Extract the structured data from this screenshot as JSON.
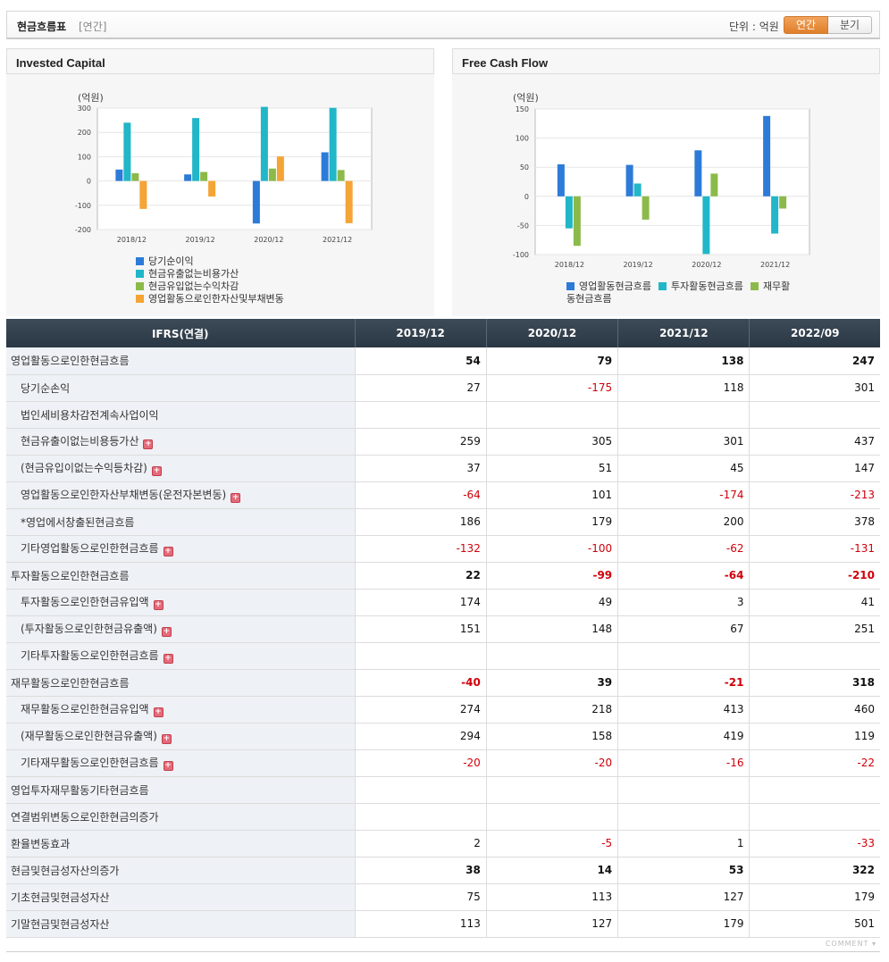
{
  "header": {
    "title": "현금흐름표",
    "period_tag": "[연간]",
    "unit_label": "단위 : 억원",
    "tab_annual": "연간",
    "tab_quarter": "분기"
  },
  "colors": {
    "blue": "#2d7bd8",
    "cyan": "#21b6c8",
    "green": "#8cba4a",
    "orange": "#f4a535",
    "negative": "#d0000a"
  },
  "panels": {
    "left_title": "Invested Capital",
    "right_title": "Free Cash Flow"
  },
  "chart_data": [
    {
      "type": "bar",
      "title": "Invested Capital",
      "ylabel": "(억원)",
      "categories": [
        "2018/12",
        "2019/12",
        "2020/12",
        "2021/12"
      ],
      "ylim": [
        -200,
        300
      ],
      "yticks": [
        300,
        200,
        100,
        0,
        -100,
        -200
      ],
      "series": [
        {
          "name": "당기순이익",
          "color": "#2d7bd8",
          "values": [
            47,
            27,
            -175,
            118
          ]
        },
        {
          "name": "현금유출없는비용가산",
          "color": "#21b6c8",
          "values": [
            240,
            259,
            305,
            301
          ]
        },
        {
          "name": "현금유입없는수익차감",
          "color": "#8cba4a",
          "values": [
            32,
            37,
            51,
            45
          ]
        },
        {
          "name": "영업활동으로인한자산및부채변동",
          "color": "#f4a535",
          "values": [
            -115,
            -64,
            101,
            -174
          ]
        }
      ],
      "legend_position": "bottom",
      "grid": true
    },
    {
      "type": "bar",
      "title": "Free Cash Flow",
      "ylabel": "(억원)",
      "categories": [
        "2018/12",
        "2019/12",
        "2020/12",
        "2021/12"
      ],
      "ylim": [
        -100,
        150
      ],
      "yticks": [
        150,
        100,
        50,
        0,
        -50,
        -100
      ],
      "series": [
        {
          "name": "영업활동현금흐름",
          "color": "#2d7bd8",
          "values": [
            55,
            54,
            79,
            138
          ]
        },
        {
          "name": "투자활동현금흐름",
          "color": "#21b6c8",
          "values": [
            -55,
            22,
            -99,
            -64
          ]
        },
        {
          "name": "재무활동현금흐름",
          "color": "#8cba4a",
          "values": [
            -85,
            -40,
            39,
            -21
          ]
        }
      ],
      "legend_position": "bottom",
      "grid": true
    }
  ],
  "table": {
    "corner": "IFRS(연결)",
    "columns": [
      "2019/12",
      "2020/12",
      "2021/12",
      "2022/09"
    ],
    "rows": [
      {
        "label": "영업활동으로인한현금흐름",
        "level": 0,
        "bold": true,
        "plus": false,
        "values": [
          "54",
          "79",
          "138",
          "247"
        ]
      },
      {
        "label": "당기순손익",
        "level": 1,
        "bold": false,
        "plus": false,
        "values": [
          "27",
          "-175",
          "118",
          "301"
        ]
      },
      {
        "label": "법인세비용차감전계속사업이익",
        "level": 1,
        "bold": false,
        "plus": false,
        "values": [
          "",
          "",
          "",
          ""
        ]
      },
      {
        "label": "현금유출이없는비용등가산",
        "level": 1,
        "bold": false,
        "plus": true,
        "values": [
          "259",
          "305",
          "301",
          "437"
        ]
      },
      {
        "label": "(현금유입이없는수익등차감)",
        "level": 1,
        "bold": false,
        "plus": true,
        "values": [
          "37",
          "51",
          "45",
          "147"
        ]
      },
      {
        "label": "영업활동으로인한자산부채변동(운전자본변동)",
        "level": 1,
        "bold": false,
        "plus": true,
        "values": [
          "-64",
          "101",
          "-174",
          "-213"
        ]
      },
      {
        "label": "*영업에서창출된현금흐름",
        "level": 1,
        "bold": false,
        "plus": false,
        "values": [
          "186",
          "179",
          "200",
          "378"
        ]
      },
      {
        "label": "기타영업활동으로인한현금흐름",
        "level": 1,
        "bold": false,
        "plus": true,
        "values": [
          "-132",
          "-100",
          "-62",
          "-131"
        ]
      },
      {
        "label": "투자활동으로인한현금흐름",
        "level": 0,
        "bold": true,
        "plus": false,
        "values": [
          "22",
          "-99",
          "-64",
          "-210"
        ]
      },
      {
        "label": "투자활동으로인한현금유입액",
        "level": 1,
        "bold": false,
        "plus": true,
        "values": [
          "174",
          "49",
          "3",
          "41"
        ]
      },
      {
        "label": "(투자활동으로인한현금유출액)",
        "level": 1,
        "bold": false,
        "plus": true,
        "values": [
          "151",
          "148",
          "67",
          "251"
        ]
      },
      {
        "label": "기타투자활동으로인한현금흐름",
        "level": 1,
        "bold": false,
        "plus": true,
        "values": [
          "",
          "",
          "",
          ""
        ]
      },
      {
        "label": "재무활동으로인한현금흐름",
        "level": 0,
        "bold": true,
        "plus": false,
        "values": [
          "-40",
          "39",
          "-21",
          "318"
        ]
      },
      {
        "label": "재무활동으로인한현금유입액",
        "level": 1,
        "bold": false,
        "plus": true,
        "values": [
          "274",
          "218",
          "413",
          "460"
        ]
      },
      {
        "label": "(재무활동으로인한현금유출액)",
        "level": 1,
        "bold": false,
        "plus": true,
        "values": [
          "294",
          "158",
          "419",
          "119"
        ]
      },
      {
        "label": "기타재무활동으로인한현금흐름",
        "level": 1,
        "bold": false,
        "plus": true,
        "values": [
          "-20",
          "-20",
          "-16",
          "-22"
        ]
      },
      {
        "label": "영업투자재무활동기타현금흐름",
        "level": 0,
        "bold": false,
        "plus": false,
        "values": [
          "",
          "",
          "",
          ""
        ]
      },
      {
        "label": "연결범위변동으로인한현금의증가",
        "level": 0,
        "bold": false,
        "plus": false,
        "values": [
          "",
          "",
          "",
          ""
        ]
      },
      {
        "label": "환율변동효과",
        "level": 0,
        "bold": false,
        "plus": false,
        "values": [
          "2",
          "-5",
          "1",
          "-33"
        ]
      },
      {
        "label": "현금및현금성자산의증가",
        "level": 0,
        "bold": true,
        "plus": false,
        "values": [
          "38",
          "14",
          "53",
          "322"
        ]
      },
      {
        "label": "기초현금및현금성자산",
        "level": 0,
        "bold": false,
        "plus": false,
        "values": [
          "75",
          "113",
          "127",
          "179"
        ]
      },
      {
        "label": "기말현금및현금성자산",
        "level": 0,
        "bold": false,
        "plus": false,
        "values": [
          "113",
          "127",
          "179",
          "501"
        ]
      }
    ]
  },
  "footer": {
    "comment": "COMMENT ▾"
  }
}
